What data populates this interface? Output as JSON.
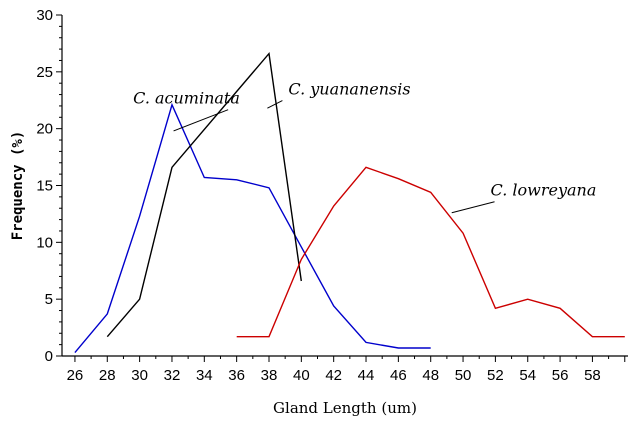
{
  "chart_data": {
    "type": "line",
    "xlabel": "Gland Length (um)",
    "ylabel": "Frequency (%)",
    "xlim": [
      25.2,
      60.2
    ],
    "ylim": [
      0,
      30
    ],
    "xticks": [
      26,
      28,
      30,
      32,
      34,
      36,
      38,
      40,
      42,
      44,
      46,
      48,
      50,
      52,
      54,
      56,
      58
    ],
    "yticks": [
      0,
      5,
      10,
      15,
      20,
      25,
      30
    ],
    "grid": false,
    "series": [
      {
        "name": "C. acuminata",
        "color": "#0000cc",
        "x": [
          26,
          28,
          30,
          32,
          34,
          36,
          38,
          40,
          42,
          44,
          46,
          48
        ],
        "y": [
          0.3,
          3.7,
          12.3,
          22.1,
          15.7,
          15.5,
          14.8,
          9.6,
          4.4,
          1.2,
          0.7,
          0.7
        ]
      },
      {
        "name": "C. yuananensis",
        "color": "#000000",
        "x": [
          28,
          30,
          32,
          38,
          40
        ],
        "y": [
          1.7,
          5.0,
          16.6,
          26.6,
          6.6
        ]
      },
      {
        "name": "C. lowreyana",
        "color": "#cc0000",
        "x": [
          36,
          38,
          40,
          42,
          44,
          46,
          48,
          50,
          52,
          54,
          56,
          58,
          60
        ],
        "y": [
          1.7,
          1.7,
          8.5,
          13.2,
          16.6,
          15.6,
          14.4,
          10.8,
          4.2,
          5.0,
          4.2,
          1.7,
          1.7
        ]
      }
    ],
    "annotations": [
      {
        "text": "C. acuminata",
        "series": 0,
        "x": 29.6,
        "y": 22.2,
        "point_x": 32.1,
        "point_y": 19.8
      },
      {
        "text": "C. yuananensis",
        "series": 1,
        "x": 39.2,
        "y": 23.0,
        "point_x": 37.9,
        "point_y": 21.8
      },
      {
        "text": "C. lowreyana",
        "series": 2,
        "x": 51.7,
        "y": 14.1,
        "point_x": 49.3,
        "point_y": 12.6
      }
    ]
  }
}
